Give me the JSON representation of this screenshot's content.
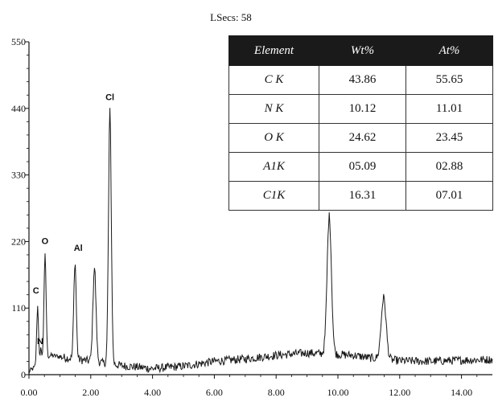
{
  "chart_data": {
    "type": "line",
    "title": "LSecs: 58",
    "xlabel": "",
    "ylabel": "",
    "xlim": [
      0,
      15
    ],
    "ylim": [
      0,
      550
    ],
    "x_ticks": [
      "0.00",
      "2.00",
      "4.00",
      "6.00",
      "8.00",
      "10.00",
      "12.00",
      "14.00"
    ],
    "y_ticks": [
      "0",
      "110",
      "220",
      "330",
      "440",
      "550"
    ],
    "grid": false,
    "peaks": [
      {
        "label": "C",
        "x": 0.28,
        "y": 113
      },
      {
        "label": "N",
        "x": 0.39,
        "y": 45
      },
      {
        "label": "O",
        "x": 0.52,
        "y": 197
      },
      {
        "label": "Al",
        "x": 1.49,
        "y": 186
      },
      {
        "label": "",
        "x": 2.12,
        "y": 177
      },
      {
        "label": "Cl",
        "x": 2.62,
        "y": 435
      },
      {
        "label": "",
        "x": 9.72,
        "y": 262
      },
      {
        "label": "",
        "x": 11.48,
        "y": 127
      }
    ],
    "background_baseline": [
      [
        0.0,
        5
      ],
      [
        0.7,
        32
      ],
      [
        1.2,
        28
      ],
      [
        3.0,
        15
      ],
      [
        4.0,
        10
      ],
      [
        5.0,
        14
      ],
      [
        6.0,
        22
      ],
      [
        7.0,
        26
      ],
      [
        8.0,
        32
      ],
      [
        9.0,
        36
      ],
      [
        10.5,
        32
      ],
      [
        11.0,
        28
      ],
      [
        12.0,
        23
      ],
      [
        13.0,
        22
      ],
      [
        14.0,
        24
      ],
      [
        15.0,
        25
      ]
    ],
    "table": {
      "columns": [
        "Element",
        "Wt%",
        "At%"
      ],
      "rows": [
        [
          "C K",
          "43.86",
          "55.65"
        ],
        [
          "N K",
          "10.12",
          "11.01"
        ],
        [
          "O K",
          "24.62",
          "23.45"
        ],
        [
          "A1K",
          "05.09",
          "02.88"
        ],
        [
          "C1K",
          "16.31",
          "07.01"
        ]
      ]
    }
  },
  "colors": {
    "line": "#1a1a1a",
    "table_header_bg": "#1a1a1a"
  }
}
